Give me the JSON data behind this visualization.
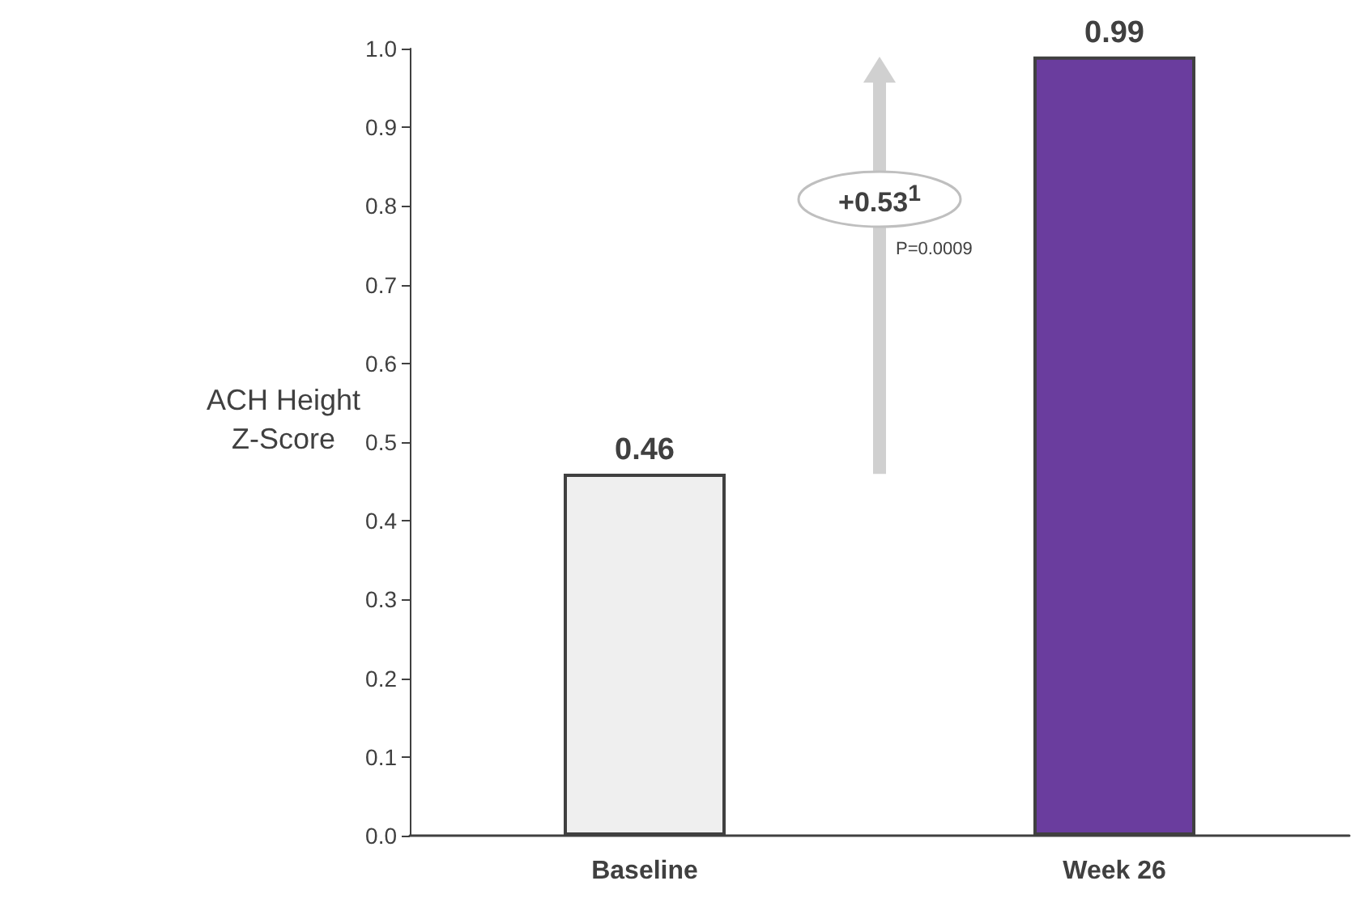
{
  "chart_data": {
    "type": "bar",
    "ylabel": "ACH Height Z-Score",
    "categories": [
      "Baseline",
      "Week 26"
    ],
    "values": [
      0.46,
      0.99
    ],
    "colors": [
      "#efefef",
      "#6a3d9e"
    ],
    "data_labels": true,
    "ylim": [
      0,
      1
    ],
    "yticks": [
      {
        "value": 0,
        "label": "0.0"
      },
      {
        "value": 0.1,
        "label": "0.1"
      },
      {
        "value": 0.2,
        "label": "0.2"
      },
      {
        "value": 0.3,
        "label": "0.3"
      },
      {
        "value": 0.4,
        "label": "0.4"
      },
      {
        "value": 0.5,
        "label": "0.5"
      },
      {
        "value": 0.6,
        "label": "0.6"
      },
      {
        "value": 0.7,
        "label": "0.7"
      },
      {
        "value": 0.8,
        "label": "0.8"
      },
      {
        "value": 0.9,
        "label": "0.9"
      },
      {
        "value": 1,
        "label": "1.0"
      }
    ],
    "grid": false,
    "annotations": [
      "+0.53$^{1}$",
      "P=0.0009"
    ]
  }
}
